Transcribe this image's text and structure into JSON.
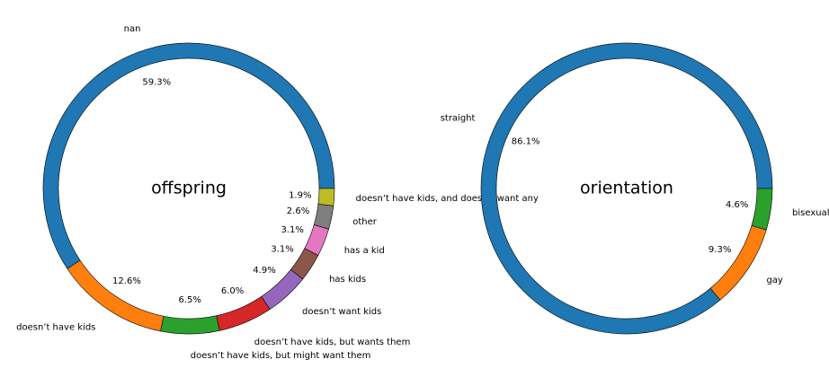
{
  "chart_data": [
    {
      "type": "pie",
      "title": "offspring",
      "donut": true,
      "start_angle_deg": 0,
      "direction": "counterclockwise",
      "slices": [
        {
          "label": "nan",
          "value": 59.3,
          "pct_label": "59.3%",
          "color": "#1f77b4"
        },
        {
          "label": "doesn’t have kids",
          "value": 12.6,
          "pct_label": "12.6%",
          "color": "#ff7f0e"
        },
        {
          "label": "doesn’t have kids, but might want them",
          "value": 6.5,
          "pct_label": "6.5%",
          "color": "#2ca02c"
        },
        {
          "label": "doesn’t have kids, but wants them",
          "value": 6.0,
          "pct_label": "6.0%",
          "color": "#d62728"
        },
        {
          "label": "doesn’t want kids",
          "value": 4.9,
          "pct_label": "4.9%",
          "color": "#9467bd"
        },
        {
          "label": "has kids",
          "value": 3.1,
          "pct_label": "3.1%",
          "color": "#8c564b"
        },
        {
          "label": "has a kid",
          "value": 3.1,
          "pct_label": "3.1%",
          "color": "#e377c2"
        },
        {
          "label": "other",
          "value": 2.6,
          "pct_label": "2.6%",
          "color": "#7f7f7f"
        },
        {
          "label": "doesn’t have kids, and doesn’t want any",
          "value": 1.9,
          "pct_label": "1.9%",
          "color": "#bcbd22"
        }
      ]
    },
    {
      "type": "pie",
      "title": "orientation",
      "donut": true,
      "start_angle_deg": 0,
      "direction": "counterclockwise",
      "slices": [
        {
          "label": "straight",
          "value": 86.1,
          "pct_label": "86.1%",
          "color": "#1f77b4"
        },
        {
          "label": "gay",
          "value": 9.3,
          "pct_label": "9.3%",
          "color": "#ff7f0e"
        },
        {
          "label": "bisexual",
          "value": 4.6,
          "pct_label": "4.6%",
          "color": "#2ca02c"
        }
      ]
    }
  ]
}
